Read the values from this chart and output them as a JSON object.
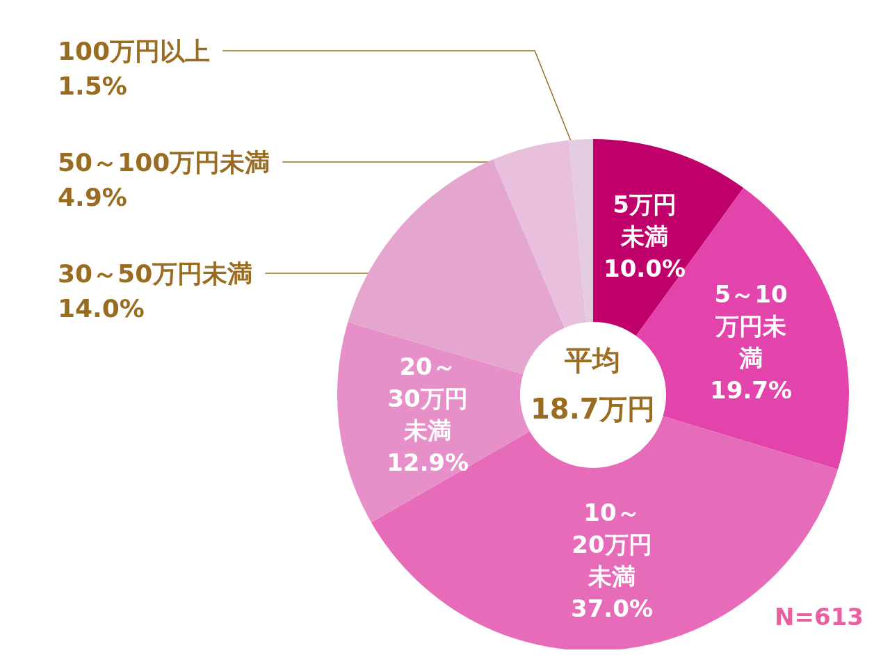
{
  "chart_data": {
    "type": "donut",
    "categories": [
      "5万円未満",
      "5～10万円未満",
      "10～20万円未満",
      "20～30万円未満",
      "30～50万円未満",
      "50～100万円未満",
      "100万円以上"
    ],
    "values": [
      10.0,
      19.7,
      37.0,
      12.9,
      14.0,
      4.9,
      1.5
    ],
    "value_labels": [
      "10.0%",
      "19.7%",
      "37.0%",
      "12.9%",
      "14.0%",
      "4.9%",
      "1.5%"
    ],
    "colors": [
      "#c0006a",
      "#e244ac",
      "#e66bb8",
      "#e78fc8",
      "#e4a5cf",
      "#e8bfdc",
      "#e3cce0"
    ],
    "annotations": [
      "平均\n18.7万円",
      "N=613"
    ],
    "legend": false
  }
}
